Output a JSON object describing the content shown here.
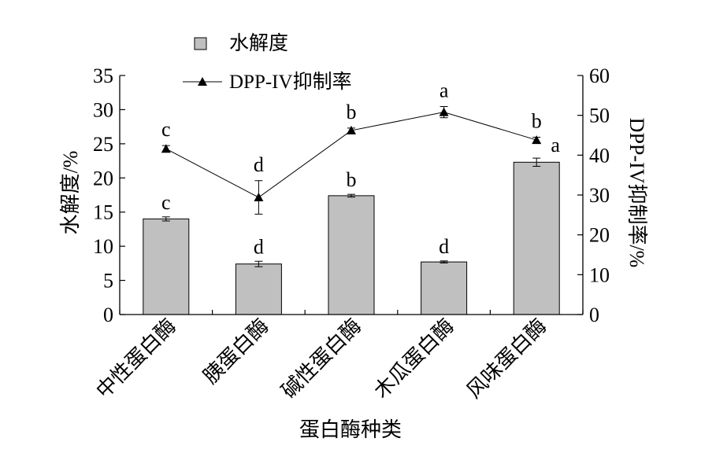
{
  "chart_data": {
    "type": "bar",
    "categories": [
      "中性蛋白酶",
      "胰蛋白酶",
      "碱性蛋白酶",
      "木瓜蛋白酶",
      "风味蛋白酶"
    ],
    "xlabel": "蛋白酶种类",
    "ylabel": "水解度/%",
    "y2label": "DPP-IV抑制率/%",
    "ylim": [
      0,
      35
    ],
    "y2lim": [
      0,
      60
    ],
    "yticks": [
      "0",
      "5",
      "10",
      "15",
      "20",
      "25",
      "30",
      "35"
    ],
    "y2ticks": [
      "0",
      "10",
      "20",
      "30",
      "40",
      "50",
      "60"
    ],
    "legend_placement": "top-left",
    "grid": false,
    "series": [
      {
        "name": "水解度",
        "kind": "bar",
        "axis": "left",
        "color": "#c0c0c0",
        "values": [
          14.0,
          7.4,
          17.4,
          7.7,
          22.3
        ],
        "errors": [
          0.3,
          0.4,
          0.2,
          0.15,
          0.6
        ],
        "letters": [
          "c",
          "d",
          "b",
          "d",
          "a"
        ]
      },
      {
        "name": "DPP-IV抑制率",
        "kind": "line",
        "axis": "right",
        "marker": "triangle",
        "color": "#000000",
        "values": [
          41.6,
          29.4,
          46.2,
          50.8,
          43.8
        ],
        "errors": [
          0.8,
          4.2,
          0.6,
          1.4,
          0.7
        ],
        "letters": [
          "c",
          "d",
          "b",
          "a",
          "b"
        ]
      }
    ]
  }
}
